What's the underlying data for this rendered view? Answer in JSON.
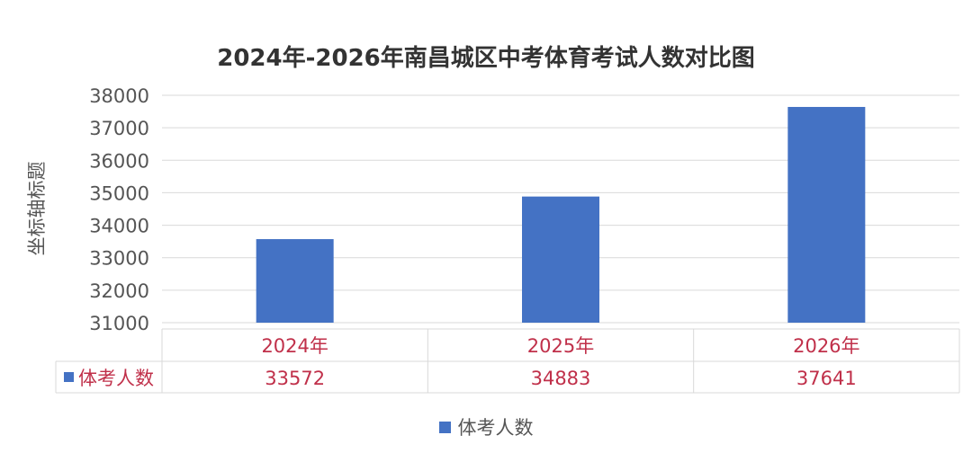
{
  "chart_data": {
    "type": "bar",
    "title": "2024年-2026年南昌城区中考体育考试人数对比图",
    "ylabel": "坐标轴标题",
    "xlabel": "",
    "categories": [
      "2024年",
      "2025年",
      "2026年"
    ],
    "series": [
      {
        "name": "体考人数",
        "values": [
          33572,
          34883,
          37641
        ],
        "color": "#4472c4"
      }
    ],
    "ylim": [
      31000,
      38000
    ],
    "yticks": [
      "31000",
      "32000",
      "33000",
      "34000",
      "35000",
      "36000",
      "37000",
      "38000"
    ],
    "table_values": [
      "33572",
      "34883",
      "37641"
    ],
    "grid": true,
    "legend": "bottom",
    "data_table": true
  },
  "colors": {
    "bar": "#4472c4",
    "table_text": "#c0304a",
    "grid": "#d9d9d9",
    "axis_text": "#555555"
  }
}
